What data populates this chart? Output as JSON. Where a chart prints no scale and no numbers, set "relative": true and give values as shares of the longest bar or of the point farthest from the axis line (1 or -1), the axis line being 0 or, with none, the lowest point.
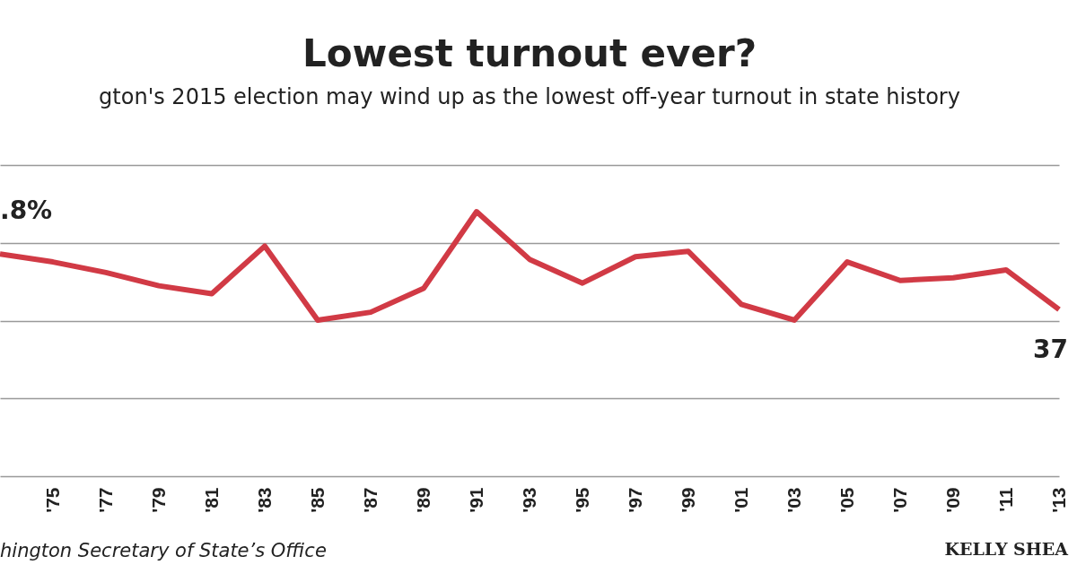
{
  "chart_data": {
    "type": "line",
    "title": "Lowest turnout ever?",
    "subtitle": "gton's 2015 election may wind up as the lowest off-year turnout in state history",
    "categories": [
      null,
      "'75",
      "'77",
      "'79",
      "'81",
      "'83",
      "'85",
      "'87",
      "'89",
      "'91",
      "'93",
      "'95",
      "'97",
      "'99",
      "'01",
      "'03",
      "'05",
      "'07",
      "'09",
      "'11",
      "'13"
    ],
    "series": [
      {
        "color": "#d13a45",
        "values": [
          0.84,
          0.81,
          0.77,
          0.72,
          0.69,
          0.87,
          0.59,
          0.62,
          0.71,
          1,
          0.82,
          0.73,
          0.83,
          0.85,
          0.65,
          0.59,
          0.81,
          0.74,
          0.75,
          0.78,
          0.63
        ]
      }
    ],
    "relative": true,
    "grid": true,
    "annotations": [
      ".8%",
      "37",
      "hington Secretary of State’s Office",
      "KELLY SHEA"
    ]
  }
}
